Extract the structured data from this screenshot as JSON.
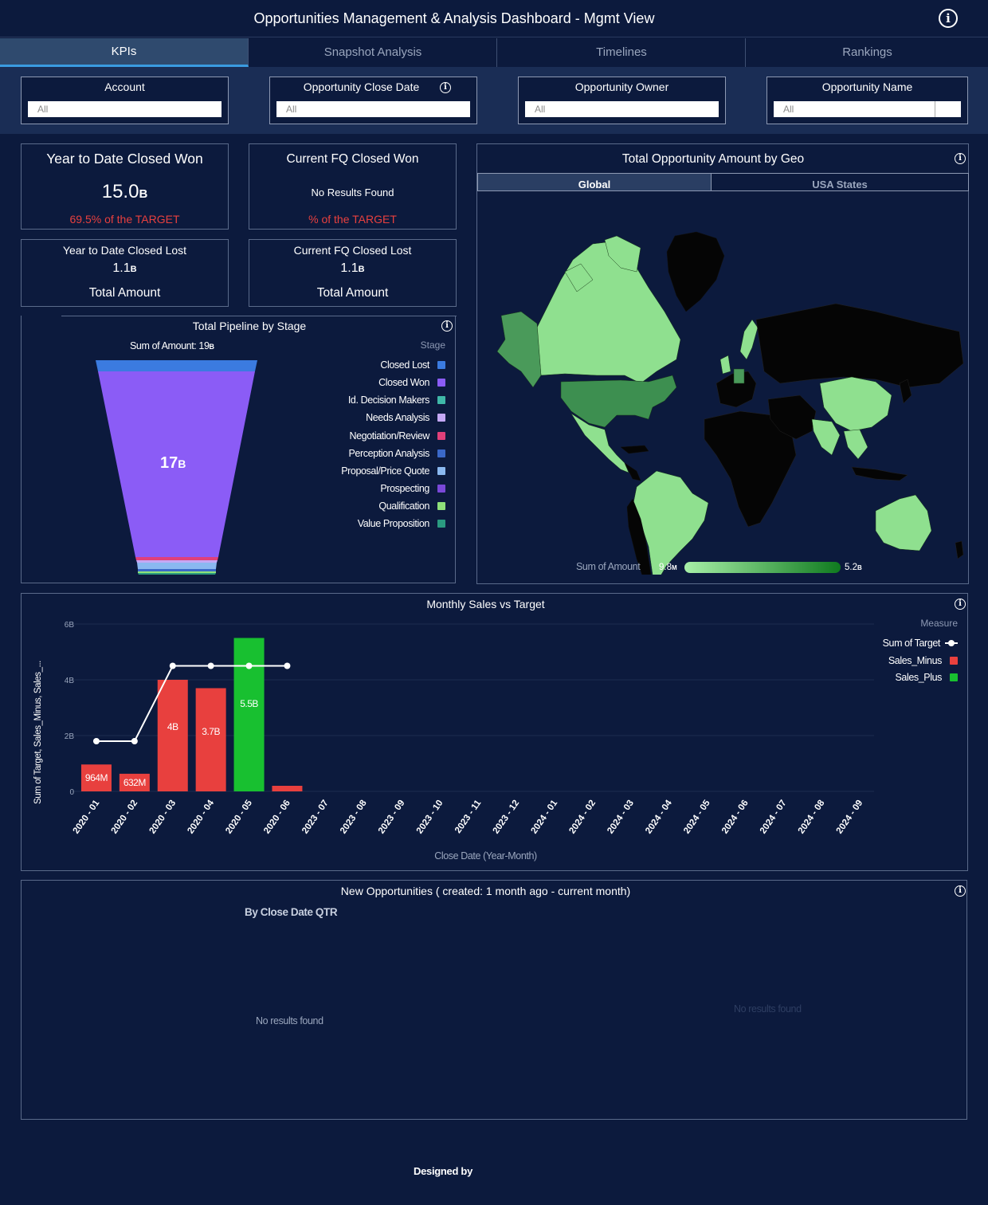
{
  "header": {
    "title": "Opportunities Management & Analysis Dashboard - Mgmt View",
    "info_icon": "info-icon"
  },
  "tabs": [
    {
      "label": "KPIs"
    },
    {
      "label": "Snapshot Analysis"
    },
    {
      "label": "Timelines"
    },
    {
      "label": "Rankings"
    }
  ],
  "filters": [
    {
      "label": "Account",
      "value": "All"
    },
    {
      "label": "Opportunity Close Date",
      "value": "All"
    },
    {
      "label": "Opportunity Owner",
      "value": "All"
    },
    {
      "label": "Opportunity Name",
      "value": "All"
    }
  ],
  "kpis": {
    "ytd_won": {
      "title": "Year to Date Closed Won",
      "value": "15.0",
      "unit": "B",
      "target": "69.5% of the TARGET"
    },
    "fq_won": {
      "title": "Current FQ Closed Won",
      "value": "No Results Found",
      "target": "% of the TARGET"
    },
    "ytd_lost": {
      "title": "Year to Date Closed Lost",
      "value": "1.1",
      "unit": "B",
      "footer": "Total Amount"
    },
    "fq_lost": {
      "title": "Current FQ Closed Lost",
      "value": "1.1",
      "unit": "B",
      "footer": "Total Amount"
    }
  },
  "pipeline": {
    "title": "Total Pipeline by Stage",
    "sum_label": "Sum of Amount: 19",
    "sum_unit": "B",
    "center_value": "17",
    "center_unit": "B",
    "legend_title": "Stage",
    "stages": [
      {
        "name": "Closed Lost",
        "color": "#3b7be0"
      },
      {
        "name": "Closed Won",
        "color": "#8b5cf6"
      },
      {
        "name": "Id. Decision Makers",
        "color": "#3fb8a8"
      },
      {
        "name": "Needs Analysis",
        "color": "#c4a8f5"
      },
      {
        "name": "Negotiation/Review",
        "color": "#e0407a"
      },
      {
        "name": "Perception Analysis",
        "color": "#3a68c8"
      },
      {
        "name": "Proposal/Price Quote",
        "color": "#8ab8f0"
      },
      {
        "name": "Prospecting",
        "color": "#7a48d8"
      },
      {
        "name": "Qualification",
        "color": "#8ee07a"
      },
      {
        "name": "Value Proposition",
        "color": "#2a9a80"
      }
    ]
  },
  "geo": {
    "title": "Total Opportunity Amount by Geo",
    "tabs": [
      {
        "label": "Global"
      },
      {
        "label": "USA States"
      }
    ],
    "legend_label": "Sum of Amount",
    "legend_min": "9.8",
    "legend_min_unit": "M",
    "legend_max": "5.2",
    "legend_max_unit": "B"
  },
  "monthly": {
    "title": "Monthly Sales vs Target",
    "ylabel": "Sum of Target, Sales_Minus, Sales_...",
    "xlabel": "Close Date (Year-Month)",
    "legend_title": "Measure",
    "legend": [
      {
        "name": "Sum of Target",
        "color": "#ffffff"
      },
      {
        "name": "Sales_Minus",
        "color": "#e8403e"
      },
      {
        "name": "Sales_Plus",
        "color": "#18c030"
      }
    ]
  },
  "chart_data": {
    "type": "bar",
    "title": "Monthly Sales vs Target",
    "xlabel": "Close Date (Year-Month)",
    "ylabel": "Sum of Target, Sales_Minus, Sales_...",
    "ylim": [
      0,
      6
    ],
    "yunit": "B",
    "yticks": [
      {
        "v": 0,
        "label": "0"
      },
      {
        "v": 2,
        "label": "2B"
      },
      {
        "v": 4,
        "label": "4B"
      },
      {
        "v": 6,
        "label": "6B"
      }
    ],
    "categories": [
      "2020 - 01",
      "2020 - 02",
      "2020 - 03",
      "2020 - 04",
      "2020 - 05",
      "2020 - 06",
      "2023 - 07",
      "2023 - 08",
      "2023 - 09",
      "2023 - 10",
      "2023 - 11",
      "2023 - 12",
      "2024 - 01",
      "2024 - 02",
      "2024 - 03",
      "2024 - 04",
      "2024 - 05",
      "2024 - 06",
      "2024 - 07",
      "2024 - 08",
      "2024 - 09"
    ],
    "series": [
      {
        "name": "Sales_Minus",
        "color": "#e8403e",
        "values": [
          0.964,
          0.632,
          4.0,
          3.7,
          null,
          0.2,
          null,
          null,
          null,
          null,
          null,
          null,
          null,
          null,
          null,
          null,
          null,
          null,
          null,
          null,
          null
        ],
        "labels": [
          "964M",
          "632M",
          "4B",
          "3.7B",
          "",
          "",
          "",
          "",
          "",
          "",
          "",
          "",
          "",
          "",
          "",
          "",
          "",
          "",
          "",
          "",
          ""
        ]
      },
      {
        "name": "Sales_Plus",
        "color": "#18c030",
        "values": [
          null,
          null,
          null,
          null,
          5.5,
          null,
          null,
          null,
          null,
          null,
          null,
          null,
          null,
          null,
          null,
          null,
          null,
          null,
          null,
          null,
          null
        ],
        "labels": [
          "",
          "",
          "",
          "",
          "5.5B",
          "",
          "",
          "",
          "",
          "",
          "",
          "",
          "",
          "",
          "",
          "",
          "",
          "",
          "",
          "",
          ""
        ]
      },
      {
        "name": "Sum of Target",
        "color": "#ffffff",
        "values": [
          1.8,
          1.8,
          4.5,
          4.5,
          4.5,
          4.5,
          null,
          null,
          null,
          null,
          null,
          null,
          null,
          null,
          null,
          null,
          null,
          null,
          null,
          null,
          null
        ]
      }
    ]
  },
  "new_opps": {
    "title": "New Opportunities ( created: 1 month ago - current month)",
    "subtitle": "By Close Date QTR",
    "empty_left": "No results found",
    "empty_right": "No results found"
  },
  "footer": {
    "text": "Designed by"
  }
}
